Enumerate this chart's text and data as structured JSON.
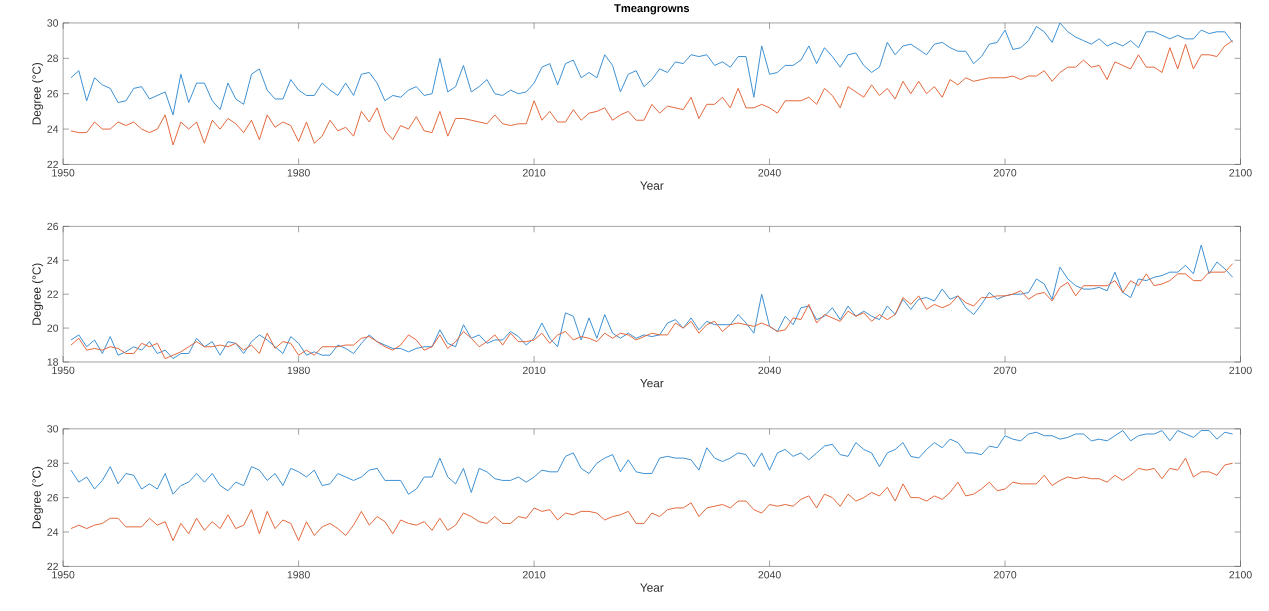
{
  "chart_data": [
    {
      "type": "line",
      "title": "Tmeangrowns",
      "xlabel": "Year",
      "ylabel": "Degree (°C)",
      "x": [
        1951,
        1952,
        1953,
        1954,
        1955,
        1956,
        1957,
        1958,
        1959,
        1960,
        1961,
        1962,
        1963,
        1964,
        1965,
        1966,
        1967,
        1968,
        1969,
        1970,
        1971,
        1972,
        1973,
        1974,
        1975,
        1976,
        1977,
        1978,
        1979,
        1980,
        1981,
        1982,
        1983,
        1984,
        1985,
        1986,
        1987,
        1988,
        1989,
        1990,
        1991,
        1992,
        1993,
        1994,
        1995,
        1996,
        1997,
        1998,
        1999,
        2000,
        2001,
        2002,
        2003,
        2004,
        2005,
        2006,
        2007,
        2008,
        2009,
        2010,
        2011,
        2012,
        2013,
        2014,
        2015,
        2016,
        2017,
        2018,
        2019,
        2020,
        2021,
        2022,
        2023,
        2024,
        2025,
        2026,
        2027,
        2028,
        2029,
        2030,
        2031,
        2032,
        2033,
        2034,
        2035,
        2036,
        2037,
        2038,
        2039,
        2040,
        2041,
        2042,
        2043,
        2044,
        2045,
        2046,
        2047,
        2048,
        2049,
        2050,
        2051,
        2052,
        2053,
        2054,
        2055,
        2056,
        2057,
        2058,
        2059,
        2060,
        2061,
        2062,
        2063,
        2064,
        2065,
        2066,
        2067,
        2068,
        2069,
        2070,
        2071,
        2072,
        2073,
        2074,
        2075,
        2076,
        2077,
        2078,
        2079,
        2080,
        2081,
        2082,
        2083,
        2084,
        2085,
        2086,
        2087,
        2088,
        2089,
        2090,
        2091,
        2092,
        2093,
        2094,
        2095,
        2096,
        2097,
        2098,
        2099
      ],
      "series": [
        {
          "color": "#3a8fd3",
          "values": [
            26.9,
            27.3,
            25.6,
            26.9,
            26.5,
            26.3,
            25.5,
            25.6,
            26.3,
            26.4,
            25.7,
            25.9,
            26.1,
            24.8,
            27.1,
            25.5,
            26.6,
            26.6,
            25.6,
            25.1,
            26.6,
            25.7,
            25.4,
            27.1,
            27.4,
            26.2,
            25.7,
            25.7,
            26.8,
            26.2,
            25.9,
            25.9,
            26.6,
            26.2,
            25.9,
            26.6,
            25.9,
            27.1,
            27.2,
            26.6,
            25.6,
            25.9,
            25.8,
            26.2,
            26.4,
            25.9,
            26.0,
            28.0,
            26.1,
            26.4,
            27.6,
            26.1,
            26.4,
            26.8,
            26.0,
            25.9,
            26.2,
            26.0,
            26.1,
            26.6,
            27.5,
            27.7,
            26.5,
            27.7,
            27.9,
            26.9,
            27.2,
            26.9,
            28.2,
            27.6,
            26.1,
            27.1,
            27.3,
            26.4,
            26.8,
            27.4,
            27.2,
            27.8,
            27.7,
            28.2,
            28.1,
            28.2,
            27.6,
            27.8,
            27.5,
            28.1,
            28.1,
            25.8,
            28.7,
            27.1,
            27.2,
            27.6,
            27.6,
            27.9,
            28.7,
            27.7,
            28.6,
            28.1,
            27.5,
            28.2,
            28.3,
            27.6,
            27.2,
            27.5,
            28.9,
            28.2,
            28.7,
            28.8,
            28.5,
            28.2,
            28.8,
            28.9,
            28.6,
            28.4,
            28.4,
            27.7,
            28.1,
            28.8,
            28.9,
            29.6,
            28.5,
            28.6,
            29.0,
            29.8,
            29.5,
            28.9,
            30.0,
            29.5,
            29.2,
            29.0,
            28.8,
            29.1,
            28.7,
            28.9,
            28.7,
            29.0,
            28.6,
            29.5,
            29.5,
            29.3,
            29.1,
            29.3,
            29.1,
            29.1,
            29.6,
            29.4,
            29.5,
            29.5,
            28.9
          ]
        },
        {
          "color": "#e2663a",
          "values": [
            23.9,
            23.8,
            23.8,
            24.4,
            24.0,
            24.0,
            24.4,
            24.2,
            24.4,
            24.0,
            23.8,
            24.0,
            24.8,
            23.1,
            24.4,
            24.0,
            24.4,
            23.2,
            24.5,
            24.0,
            24.6,
            24.3,
            23.8,
            24.5,
            23.4,
            24.8,
            24.1,
            24.4,
            24.2,
            23.3,
            24.4,
            23.2,
            23.6,
            24.5,
            23.9,
            24.1,
            23.6,
            25.0,
            24.4,
            25.2,
            23.9,
            23.4,
            24.2,
            24.0,
            24.7,
            23.9,
            23.8,
            25.0,
            23.6,
            24.6,
            24.6,
            24.5,
            24.4,
            24.3,
            24.8,
            24.3,
            24.2,
            24.3,
            24.3,
            25.6,
            24.5,
            25.0,
            24.4,
            24.4,
            25.1,
            24.5,
            24.9,
            25.0,
            25.2,
            24.5,
            24.8,
            25.0,
            24.5,
            24.5,
            25.4,
            24.9,
            25.3,
            25.2,
            25.1,
            25.8,
            24.6,
            25.4,
            25.4,
            25.8,
            25.2,
            26.3,
            25.2,
            25.2,
            25.4,
            25.2,
            24.9,
            25.6,
            25.6,
            25.6,
            25.8,
            25.4,
            26.3,
            25.9,
            25.2,
            26.4,
            26.1,
            25.8,
            26.5,
            25.9,
            26.3,
            25.7,
            26.7,
            26.0,
            26.7,
            26.0,
            26.4,
            25.8,
            26.8,
            26.5,
            26.9,
            26.7,
            26.8,
            26.9,
            26.9,
            26.9,
            27.0,
            26.8,
            27.0,
            27.0,
            27.3,
            26.7,
            27.2,
            27.5,
            27.5,
            27.9,
            27.5,
            27.6,
            26.8,
            27.8,
            27.6,
            27.4,
            28.2,
            27.5,
            27.5,
            27.2,
            28.6,
            27.4,
            28.8,
            27.4,
            28.2,
            28.2,
            28.1,
            28.7,
            29.0
          ]
        }
      ],
      "xlim": [
        1950,
        2100
      ],
      "xticks": [
        1950,
        1980,
        2010,
        2040,
        2070,
        2100
      ],
      "ylim": [
        22,
        30
      ],
      "yticks": [
        22,
        24,
        26,
        28,
        30
      ]
    },
    {
      "type": "line",
      "xlabel": "Year",
      "ylabel": "Degree (°C)",
      "x": [
        1951,
        1952,
        1953,
        1954,
        1955,
        1956,
        1957,
        1958,
        1959,
        1960,
        1961,
        1962,
        1963,
        1964,
        1965,
        1966,
        1967,
        1968,
        1969,
        1970,
        1971,
        1972,
        1973,
        1974,
        1975,
        1976,
        1977,
        1978,
        1979,
        1980,
        1981,
        1982,
        1983,
        1984,
        1985,
        1986,
        1987,
        1988,
        1989,
        1990,
        1991,
        1992,
        1993,
        1994,
        1995,
        1996,
        1997,
        1998,
        1999,
        2000,
        2001,
        2002,
        2003,
        2004,
        2005,
        2006,
        2007,
        2008,
        2009,
        2010,
        2011,
        2012,
        2013,
        2014,
        2015,
        2016,
        2017,
        2018,
        2019,
        2020,
        2021,
        2022,
        2023,
        2024,
        2025,
        2026,
        2027,
        2028,
        2029,
        2030,
        2031,
        2032,
        2033,
        2034,
        2035,
        2036,
        2037,
        2038,
        2039,
        2040,
        2041,
        2042,
        2043,
        2044,
        2045,
        2046,
        2047,
        2048,
        2049,
        2050,
        2051,
        2052,
        2053,
        2054,
        2055,
        2056,
        2057,
        2058,
        2059,
        2060,
        2061,
        2062,
        2063,
        2064,
        2065,
        2066,
        2067,
        2068,
        2069,
        2070,
        2071,
        2072,
        2073,
        2074,
        2075,
        2076,
        2077,
        2078,
        2079,
        2080,
        2081,
        2082,
        2083,
        2084,
        2085,
        2086,
        2087,
        2088,
        2089,
        2090,
        2091,
        2092,
        2093,
        2094,
        2095,
        2096,
        2097,
        2098,
        2099
      ],
      "series": [
        {
          "color": "#3a8fd3",
          "values": [
            19.3,
            19.6,
            18.9,
            19.3,
            18.5,
            19.5,
            18.4,
            18.6,
            18.9,
            18.7,
            19.2,
            18.5,
            18.7,
            18.2,
            18.5,
            18.5,
            19.4,
            18.9,
            19.2,
            18.4,
            19.2,
            19.1,
            18.5,
            19.2,
            19.6,
            19.3,
            18.9,
            18.5,
            19.5,
            19.1,
            18.4,
            18.6,
            18.4,
            18.4,
            19.0,
            18.8,
            18.5,
            19.1,
            19.6,
            19.2,
            19.0,
            18.8,
            18.8,
            18.6,
            18.8,
            18.9,
            18.9,
            19.9,
            19.1,
            18.9,
            20.2,
            19.4,
            19.6,
            19.1,
            19.3,
            19.3,
            19.8,
            19.5,
            19.0,
            19.4,
            20.3,
            19.4,
            18.9,
            20.9,
            20.7,
            19.3,
            20.6,
            19.4,
            20.8,
            19.7,
            19.4,
            19.7,
            19.4,
            19.6,
            19.5,
            19.6,
            20.3,
            20.5,
            20.0,
            20.6,
            19.9,
            20.4,
            20.2,
            20.2,
            20.2,
            20.8,
            20.3,
            19.7,
            22.0,
            20.1,
            19.8,
            20.7,
            20.2,
            21.2,
            21.3,
            20.5,
            20.7,
            21.2,
            20.5,
            21.3,
            20.7,
            21.0,
            20.7,
            20.5,
            21.3,
            20.8,
            21.7,
            21.1,
            21.7,
            21.8,
            21.6,
            22.3,
            21.7,
            21.9,
            21.2,
            20.8,
            21.4,
            22.1,
            21.7,
            21.9,
            22.0,
            22.0,
            22.1,
            22.9,
            22.6,
            21.7,
            23.6,
            22.9,
            22.5,
            22.3,
            22.3,
            22.4,
            22.2,
            23.3,
            22.1,
            21.8,
            22.9,
            22.8,
            23.0,
            23.1,
            23.3,
            23.3,
            23.7,
            23.2,
            24.9,
            23.2,
            23.9,
            23.5,
            23.0
          ]
        },
        {
          "color": "#e2663a",
          "values": [
            19.0,
            19.4,
            18.7,
            18.8,
            18.7,
            18.9,
            18.8,
            18.5,
            18.5,
            19.1,
            18.9,
            19.1,
            18.2,
            18.4,
            18.6,
            18.9,
            19.2,
            18.9,
            18.9,
            19.0,
            18.9,
            19.1,
            18.7,
            19.0,
            18.5,
            19.7,
            18.8,
            19.2,
            19.1,
            18.4,
            18.7,
            18.4,
            18.9,
            18.9,
            18.9,
            19.0,
            19.0,
            19.4,
            19.5,
            19.2,
            18.9,
            18.7,
            19.0,
            19.6,
            19.3,
            18.7,
            18.9,
            19.6,
            18.8,
            19.2,
            19.8,
            19.4,
            18.9,
            19.2,
            19.6,
            19.0,
            19.7,
            19.2,
            19.2,
            19.3,
            19.7,
            19.1,
            19.6,
            19.8,
            19.3,
            19.5,
            19.4,
            19.2,
            19.7,
            19.4,
            19.7,
            19.6,
            19.3,
            19.5,
            19.7,
            19.6,
            19.6,
            20.3,
            20.0,
            20.4,
            19.7,
            20.2,
            20.4,
            19.8,
            20.2,
            20.3,
            20.2,
            20.1,
            20.3,
            20.1,
            19.8,
            19.9,
            20.6,
            20.5,
            21.4,
            20.3,
            20.8,
            20.6,
            20.4,
            21.0,
            20.7,
            20.9,
            20.4,
            20.8,
            20.5,
            20.8,
            21.8,
            21.4,
            21.9,
            21.1,
            21.4,
            21.2,
            21.4,
            21.9,
            21.5,
            21.3,
            21.8,
            21.8,
            21.9,
            21.9,
            22.0,
            22.2,
            21.7,
            22.0,
            22.1,
            21.6,
            22.4,
            22.7,
            21.9,
            22.5,
            22.5,
            22.5,
            22.5,
            22.8,
            22.1,
            22.8,
            22.5,
            23.2,
            22.5,
            22.6,
            22.8,
            23.2,
            23.2,
            22.8,
            22.8,
            23.3,
            23.3,
            23.3,
            23.8
          ]
        }
      ],
      "xlim": [
        1950,
        2100
      ],
      "xticks": [
        1950,
        1980,
        2010,
        2040,
        2070,
        2100
      ],
      "ylim": [
        18,
        26
      ],
      "yticks": [
        18,
        20,
        22,
        24,
        26
      ]
    },
    {
      "type": "line",
      "xlabel": "Year",
      "ylabel": "Degree (°C)",
      "x": [
        1951,
        1952,
        1953,
        1954,
        1955,
        1956,
        1957,
        1958,
        1959,
        1960,
        1961,
        1962,
        1963,
        1964,
        1965,
        1966,
        1967,
        1968,
        1969,
        1970,
        1971,
        1972,
        1973,
        1974,
        1975,
        1976,
        1977,
        1978,
        1979,
        1980,
        1981,
        1982,
        1983,
        1984,
        1985,
        1986,
        1987,
        1988,
        1989,
        1990,
        1991,
        1992,
        1993,
        1994,
        1995,
        1996,
        1997,
        1998,
        1999,
        2000,
        2001,
        2002,
        2003,
        2004,
        2005,
        2006,
        2007,
        2008,
        2009,
        2010,
        2011,
        2012,
        2013,
        2014,
        2015,
        2016,
        2017,
        2018,
        2019,
        2020,
        2021,
        2022,
        2023,
        2024,
        2025,
        2026,
        2027,
        2028,
        2029,
        2030,
        2031,
        2032,
        2033,
        2034,
        2035,
        2036,
        2037,
        2038,
        2039,
        2040,
        2041,
        2042,
        2043,
        2044,
        2045,
        2046,
        2047,
        2048,
        2049,
        2050,
        2051,
        2052,
        2053,
        2054,
        2055,
        2056,
        2057,
        2058,
        2059,
        2060,
        2061,
        2062,
        2063,
        2064,
        2065,
        2066,
        2067,
        2068,
        2069,
        2070,
        2071,
        2072,
        2073,
        2074,
        2075,
        2076,
        2077,
        2078,
        2079,
        2080,
        2081,
        2082,
        2083,
        2084,
        2085,
        2086,
        2087,
        2088,
        2089,
        2090,
        2091,
        2092,
        2093,
        2094,
        2095,
        2096,
        2097,
        2098,
        2099
      ],
      "series": [
        {
          "color": "#3a8fd3",
          "values": [
            27.6,
            26.9,
            27.2,
            26.5,
            27.0,
            27.8,
            26.8,
            27.4,
            27.3,
            26.5,
            26.8,
            26.5,
            27.4,
            26.2,
            26.7,
            26.9,
            27.4,
            26.9,
            27.4,
            26.7,
            26.4,
            26.9,
            26.7,
            27.8,
            27.6,
            27.0,
            27.4,
            26.7,
            27.7,
            27.5,
            27.2,
            27.6,
            26.7,
            26.8,
            27.4,
            27.2,
            27.0,
            27.2,
            27.6,
            27.7,
            27.0,
            27.0,
            27.0,
            26.2,
            26.5,
            27.2,
            27.2,
            28.3,
            27.2,
            26.8,
            27.7,
            26.3,
            27.7,
            27.5,
            27.1,
            27.0,
            27.0,
            27.2,
            26.9,
            27.2,
            27.6,
            27.5,
            27.5,
            28.4,
            28.6,
            27.7,
            27.4,
            28.0,
            28.3,
            28.5,
            27.5,
            28.2,
            27.5,
            27.4,
            27.4,
            28.3,
            28.4,
            28.3,
            28.3,
            28.2,
            27.6,
            28.9,
            28.3,
            28.1,
            28.3,
            28.6,
            28.5,
            27.8,
            28.6,
            27.6,
            28.6,
            28.8,
            28.4,
            28.6,
            28.2,
            28.6,
            29.0,
            29.1,
            28.5,
            28.4,
            29.2,
            28.8,
            28.6,
            27.8,
            28.6,
            28.8,
            29.2,
            28.4,
            28.3,
            28.8,
            29.2,
            28.9,
            29.4,
            29.2,
            28.6,
            28.6,
            28.5,
            29.0,
            28.9,
            29.6,
            29.4,
            29.3,
            29.7,
            29.8,
            29.6,
            29.6,
            29.4,
            29.5,
            29.7,
            29.7,
            29.3,
            29.4,
            29.3,
            29.6,
            29.9,
            29.3,
            29.6,
            29.7,
            29.7,
            29.9,
            29.3,
            29.9,
            29.7,
            29.5,
            29.9,
            29.9,
            29.4,
            29.8,
            29.7
          ]
        },
        {
          "color": "#e2663a",
          "values": [
            24.2,
            24.4,
            24.2,
            24.4,
            24.5,
            24.8,
            24.8,
            24.3,
            24.3,
            24.3,
            24.8,
            24.4,
            24.6,
            23.5,
            24.5,
            23.9,
            24.8,
            24.1,
            24.6,
            24.2,
            25.0,
            24.2,
            24.4,
            25.3,
            23.9,
            25.2,
            24.2,
            24.7,
            24.5,
            23.5,
            24.6,
            23.8,
            24.3,
            24.5,
            24.2,
            23.8,
            24.4,
            25.2,
            24.4,
            24.9,
            24.6,
            23.9,
            24.7,
            24.5,
            24.4,
            24.6,
            24.1,
            24.8,
            24.1,
            24.4,
            25.1,
            24.9,
            24.6,
            24.5,
            24.9,
            24.5,
            24.5,
            24.9,
            24.8,
            25.4,
            25.2,
            25.3,
            24.7,
            25.1,
            25.0,
            25.2,
            25.2,
            25.1,
            24.7,
            24.9,
            25.0,
            25.2,
            24.5,
            24.5,
            25.1,
            24.9,
            25.3,
            25.4,
            25.4,
            25.7,
            24.9,
            25.4,
            25.5,
            25.6,
            25.4,
            25.8,
            25.8,
            25.3,
            25.1,
            25.6,
            25.5,
            25.6,
            25.5,
            25.9,
            26.1,
            25.4,
            26.2,
            26.0,
            25.5,
            26.2,
            25.8,
            26.0,
            26.3,
            26.1,
            26.6,
            25.8,
            26.8,
            26.0,
            26.0,
            25.8,
            26.1,
            25.9,
            26.3,
            26.9,
            26.1,
            26.2,
            26.5,
            26.9,
            26.4,
            26.5,
            26.9,
            26.8,
            26.8,
            26.8,
            27.3,
            26.7,
            27.0,
            27.2,
            27.1,
            27.2,
            27.1,
            27.1,
            26.9,
            27.3,
            27.0,
            27.3,
            27.7,
            27.6,
            27.7,
            27.1,
            27.7,
            27.6,
            28.3,
            27.2,
            27.5,
            27.5,
            27.3,
            27.9,
            28.0
          ]
        }
      ],
      "xlim": [
        1950,
        2100
      ],
      "xticks": [
        1950,
        1980,
        2010,
        2040,
        2070,
        2100
      ],
      "ylim": [
        22,
        30
      ],
      "yticks": [
        22,
        24,
        26,
        28,
        30
      ]
    }
  ]
}
